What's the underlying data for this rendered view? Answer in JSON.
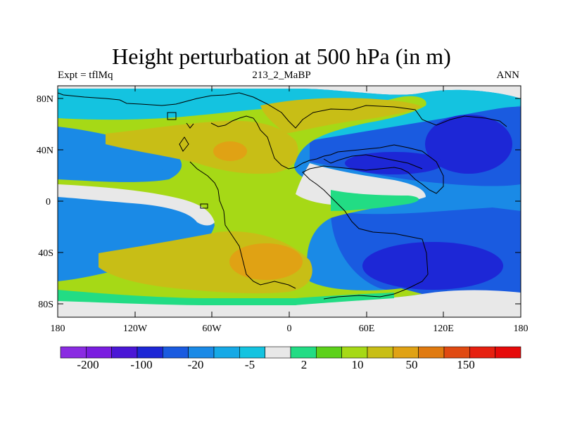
{
  "title": "Height perturbation at 500 hPa (in m)",
  "left_string": "Expt = tflMq",
  "center_string": "213_2_MaBP",
  "right_string": "ANN",
  "map": {
    "lat_tick_labels": [
      "80N",
      "40N",
      "0",
      "40S",
      "80S"
    ],
    "lon_tick_labels": [
      "180",
      "120W",
      "60W",
      "0",
      "60E",
      "120E",
      "180"
    ]
  },
  "colorbar": {
    "colors": [
      "#8a2be2",
      "#7a1de0",
      "#4a16d6",
      "#1d27d6",
      "#1a5be0",
      "#1a8ae6",
      "#16a9e6",
      "#14c3e0",
      "#e8e8e8",
      "#22dc84",
      "#5cd11a",
      "#a6d916",
      "#c8be16",
      "#e0a214",
      "#e07a10",
      "#e04a12",
      "#e62010",
      "#e60a0a"
    ],
    "labels": [
      "-200",
      "-100",
      "-20",
      "-5",
      "2",
      "10",
      "50",
      "150"
    ]
  },
  "palette": {
    "neg_strong": "#1d27d6",
    "neg_mid": "#1a5be0",
    "neg_weak": "#1a8ae6",
    "neg_faint": "#14c3e0",
    "neutral": "#e8e8e8",
    "pos_faint": "#22dc84",
    "pos_weak": "#5cd11a",
    "pos_mid": "#a6d916",
    "pos_strong": "#c8be16",
    "pos_high": "#e0a214",
    "pos_peak": "#e07a10"
  }
}
